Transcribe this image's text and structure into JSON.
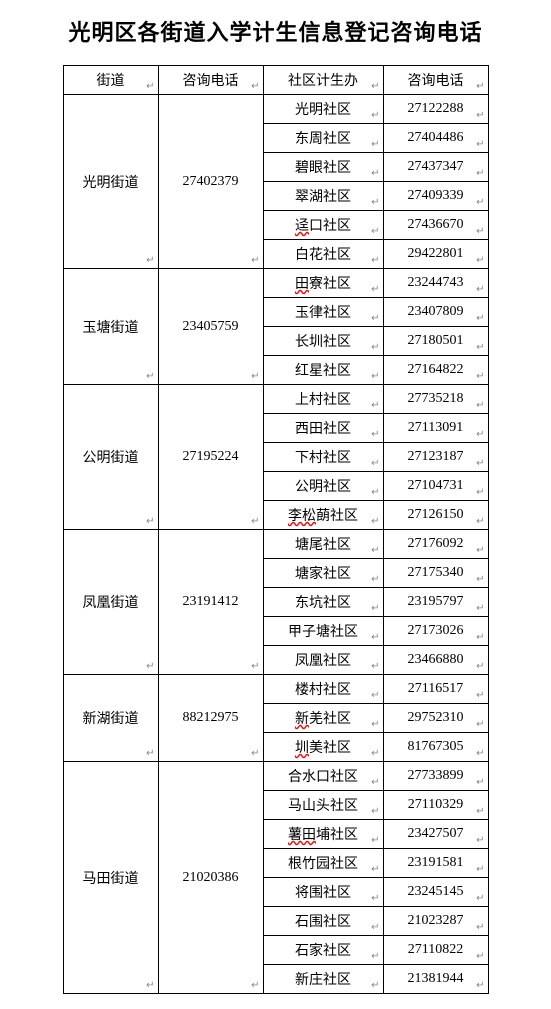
{
  "title": "光明区各街道入学计生信息登记咨询电话",
  "headers": {
    "street": "街道",
    "phone1": "咨询电话",
    "community": "社区计生办",
    "phone2": "咨询电话"
  },
  "enter_symbol": "↵",
  "groups": [
    {
      "street": "光明街道",
      "phone": "27402379",
      "communities": [
        {
          "name": "光明社区",
          "phone": "27122288",
          "spell_err": false
        },
        {
          "name": "东周社区",
          "phone": "27404486",
          "spell_err": false
        },
        {
          "name": "碧眼社区",
          "phone": "27437347",
          "spell_err": false
        },
        {
          "name": "翠湖社区",
          "phone": "27409339",
          "spell_err": false
        },
        {
          "name": "迳口社区",
          "phone": "27436670",
          "spell_err": true
        },
        {
          "name": "白花社区",
          "phone": "29422801",
          "spell_err": false
        }
      ]
    },
    {
      "street": "玉塘街道",
      "phone": "23405759",
      "communities": [
        {
          "name": "田寮社区",
          "phone": "23244743",
          "spell_err": true
        },
        {
          "name": "玉律社区",
          "phone": "23407809",
          "spell_err": false
        },
        {
          "name": "长圳社区",
          "phone": "27180501",
          "spell_err": false
        },
        {
          "name": "红星社区",
          "phone": "27164822",
          "spell_err": false
        }
      ]
    },
    {
      "street": "公明街道",
      "phone": "27195224",
      "communities": [
        {
          "name": "上村社区",
          "phone": "27735218",
          "spell_err": false
        },
        {
          "name": "西田社区",
          "phone": "27113091",
          "spell_err": false
        },
        {
          "name": "下村社区",
          "phone": "27123187",
          "spell_err": false
        },
        {
          "name": "公明社区",
          "phone": "27104731",
          "spell_err": false
        },
        {
          "name": "李松蓢社区",
          "phone": "27126150",
          "spell_err": true
        }
      ]
    },
    {
      "street": "凤凰街道",
      "phone": "23191412",
      "communities": [
        {
          "name": "塘尾社区",
          "phone": "27176092",
          "spell_err": false
        },
        {
          "name": "塘家社区",
          "phone": "27175340",
          "spell_err": false
        },
        {
          "name": "东坑社区",
          "phone": "23195797",
          "spell_err": false
        },
        {
          "name": "甲子塘社区",
          "phone": "27173026",
          "spell_err": false
        },
        {
          "name": "凤凰社区",
          "phone": "23466880",
          "spell_err": false
        }
      ]
    },
    {
      "street": "新湖街道",
      "phone": "88212975",
      "communities": [
        {
          "name": "楼村社区",
          "phone": "27116517",
          "spell_err": false
        },
        {
          "name": "新羌社区",
          "phone": "29752310",
          "spell_err": true
        },
        {
          "name": "圳美社区",
          "phone": "81767305",
          "spell_err": true
        }
      ]
    },
    {
      "street": "马田街道",
      "phone": "21020386",
      "communities": [
        {
          "name": "合水口社区",
          "phone": "27733899",
          "spell_err": false
        },
        {
          "name": "马山头社区",
          "phone": "27110329",
          "spell_err": false
        },
        {
          "name": "薯田埔社区",
          "phone": "23427507",
          "spell_err": true
        },
        {
          "name": "根竹园社区",
          "phone": "23191581",
          "spell_err": false
        },
        {
          "name": "将围社区",
          "phone": "23245145",
          "spell_err": false
        },
        {
          "name": "石围社区",
          "phone": "21023287",
          "spell_err": false
        },
        {
          "name": "石家社区",
          "phone": "27110822",
          "spell_err": false
        },
        {
          "name": "新庄社区",
          "phone": "21381944",
          "spell_err": false
        }
      ]
    }
  ]
}
